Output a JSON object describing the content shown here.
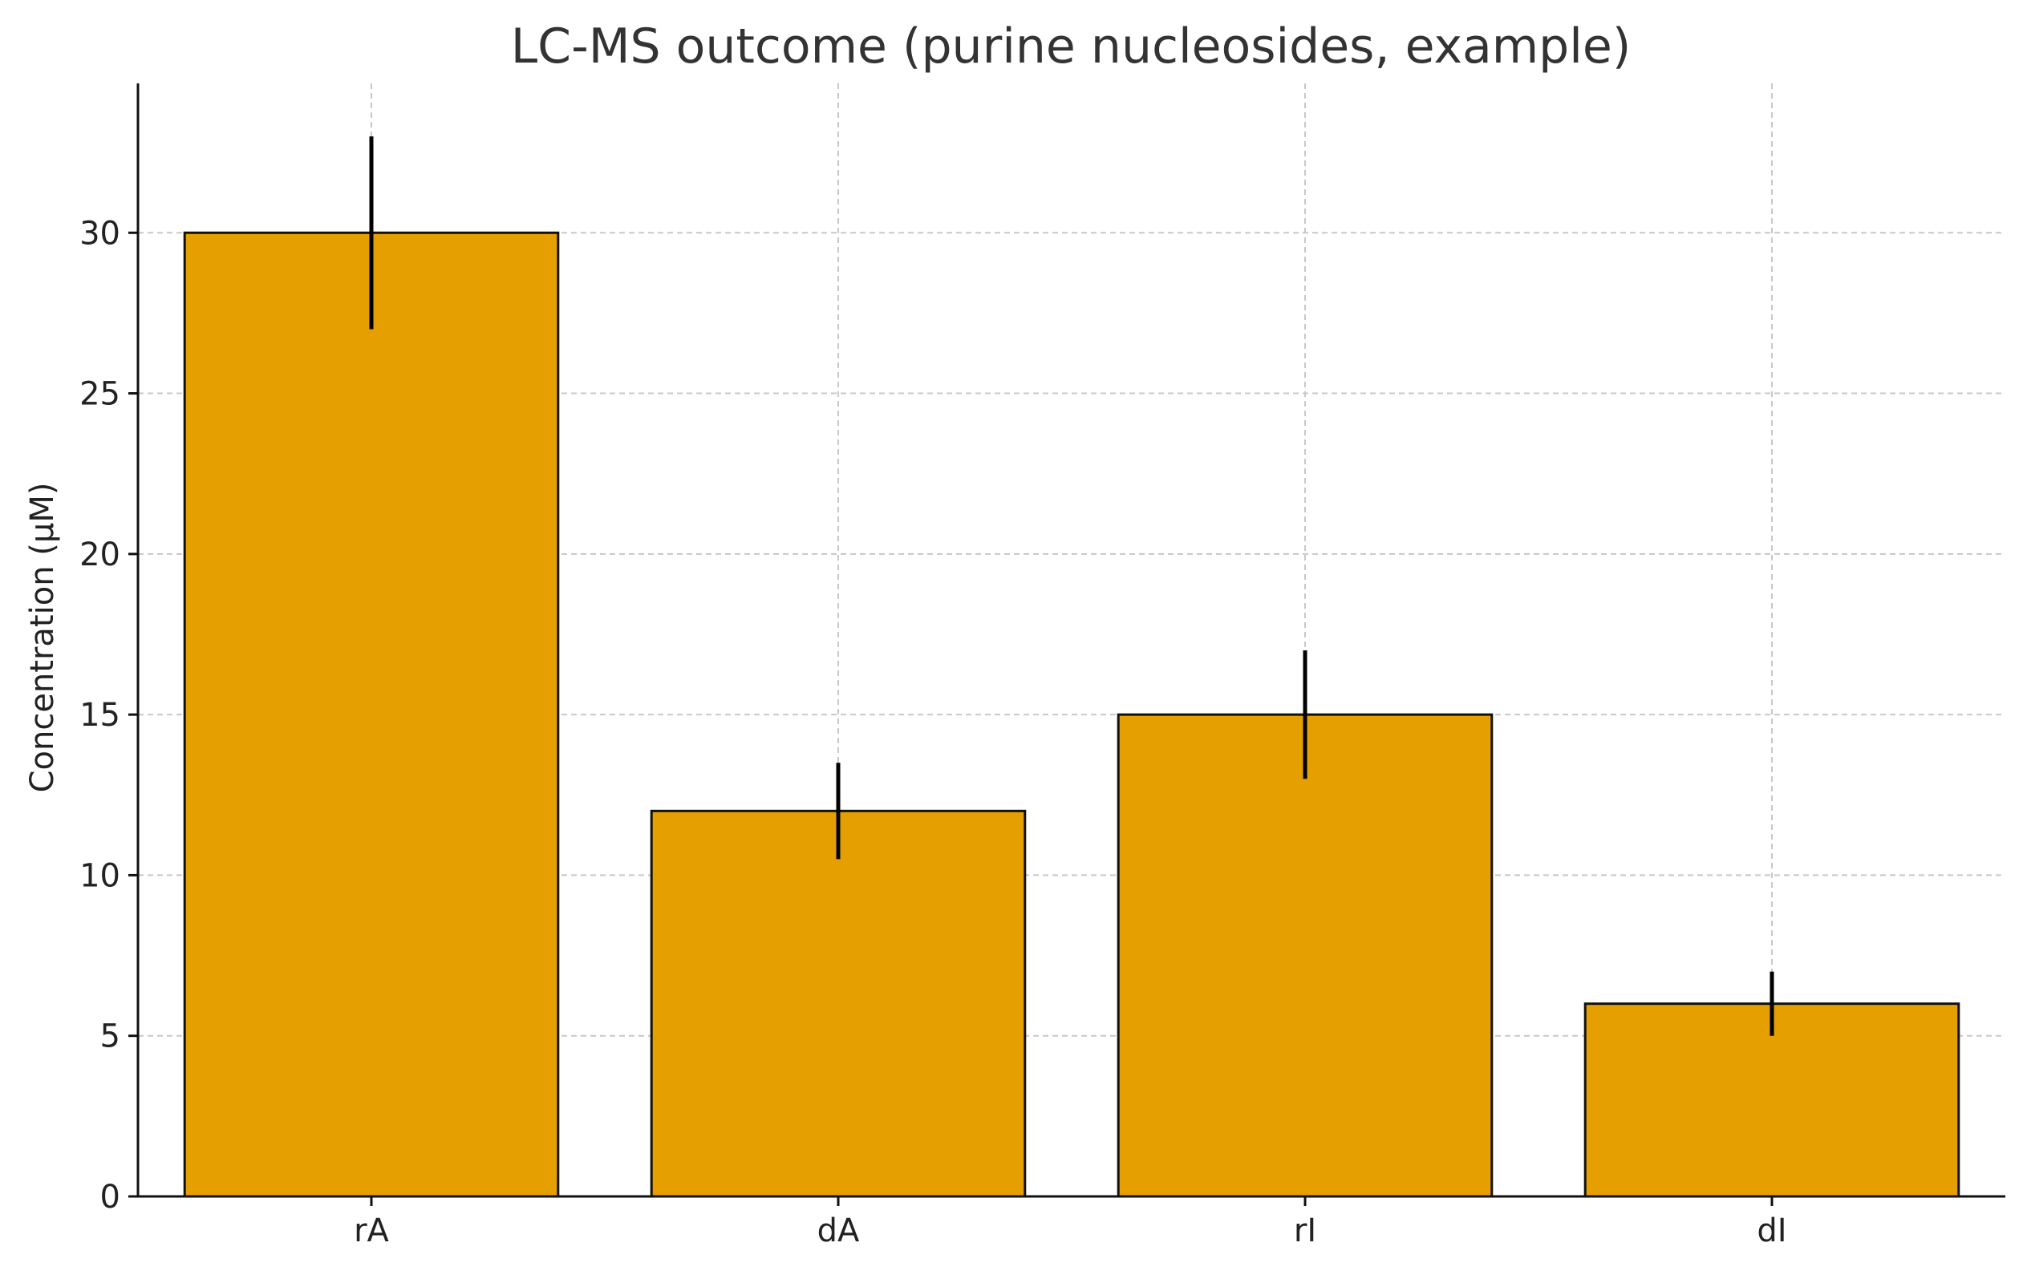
{
  "chart_data": {
    "type": "bar",
    "title": "LC-MS outcome (purine nucleosides, example)",
    "xlabel": "",
    "ylabel": "Concentration (µM)",
    "categories": [
      "rA",
      "dA",
      "rI",
      "dI"
    ],
    "values": [
      30,
      12,
      15,
      6
    ],
    "error_bars": [
      3,
      1.5,
      2,
      1
    ],
    "ylim": [
      0,
      34.65
    ],
    "yticks": [
      0,
      5,
      10,
      15,
      20,
      25,
      30
    ],
    "grid": true,
    "colors": {
      "bar_fill": "#E69F00",
      "bar_edge": "#111111",
      "error_bar": "#000000",
      "grid": "#c8c8c8",
      "axis": "#111111"
    }
  }
}
